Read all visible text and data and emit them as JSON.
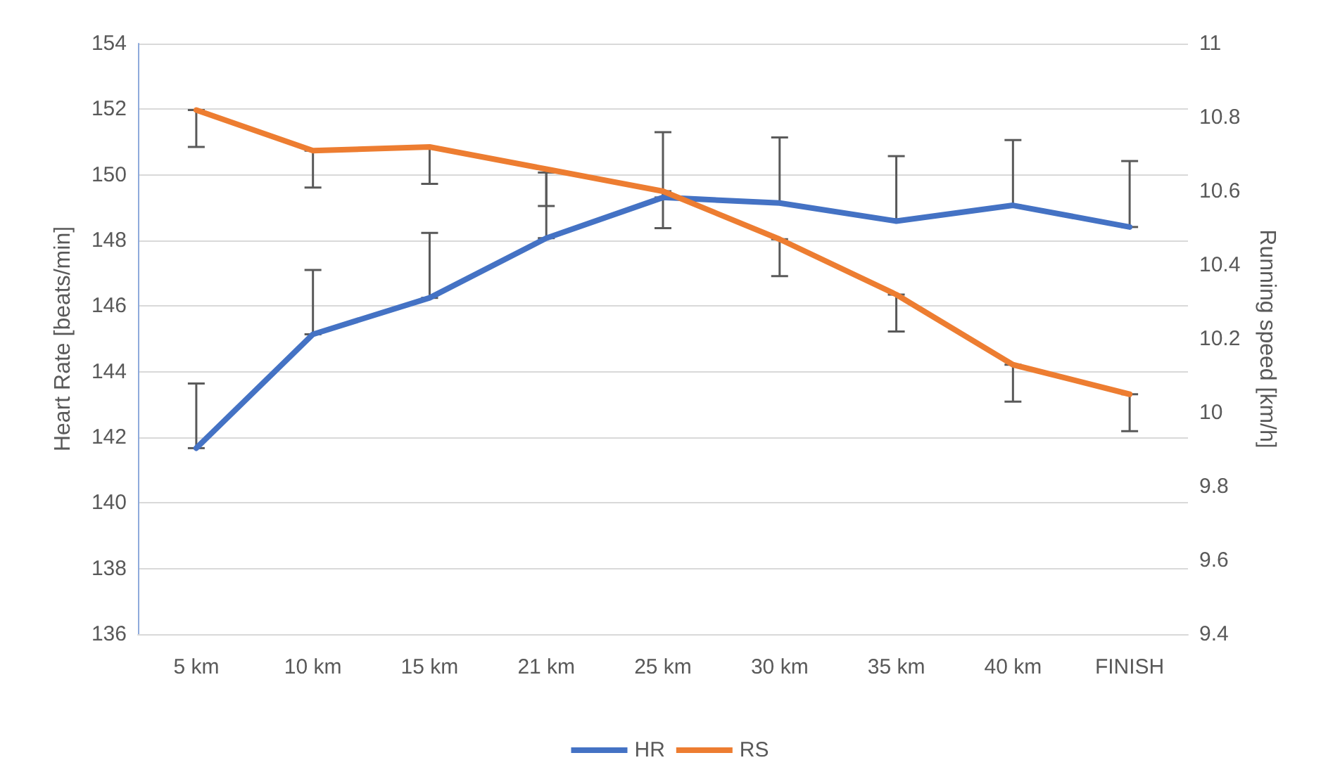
{
  "chart_data": {
    "type": "line",
    "ylabel": "Heart Rate [beats/min]",
    "y2label": "Running speed [km/h]",
    "categories": [
      "5 km",
      "10 km",
      "15 km",
      "21 km",
      "25 km",
      "30 km",
      "35 km",
      "40 km",
      "FINISH"
    ],
    "series": [
      {
        "name": "HR",
        "color": "#4472c4",
        "values": [
          141.67,
          145.14,
          146.25,
          148.07,
          149.31,
          149.14,
          148.59,
          149.07,
          148.41
        ],
        "errors": [
          [
            141.67,
            143.64
          ],
          [
            145.14,
            147.1
          ],
          [
            146.25,
            148.23
          ],
          [
            148.07,
            150.07
          ],
          [
            149.31,
            151.3
          ],
          [
            149.14,
            151.14
          ],
          [
            148.59,
            150.57
          ],
          [
            149.07,
            151.06
          ],
          [
            148.41,
            150.42
          ]
        ]
      },
      {
        "name": "RS",
        "color": "#ed7d31",
        "axis": "y2",
        "values": [
          10.82,
          10.71,
          10.72,
          10.66,
          10.6,
          10.47,
          10.32,
          10.13,
          10.05
        ],
        "errors": [
          [
            10.72,
            10.82
          ],
          [
            10.61,
            10.71
          ],
          [
            10.62,
            10.72
          ],
          [
            10.56,
            10.66
          ],
          [
            10.5,
            10.6
          ],
          [
            10.37,
            10.47
          ],
          [
            10.22,
            10.32
          ],
          [
            10.03,
            10.13
          ],
          [
            9.95,
            10.05
          ]
        ]
      }
    ],
    "ylim": [
      136,
      154
    ],
    "yticks": [
      136,
      138,
      140,
      142,
      144,
      146,
      148,
      150,
      152,
      154
    ],
    "y2lim": [
      9.4,
      11
    ],
    "y2ticks": [
      9.4,
      9.6,
      9.8,
      10,
      10.2,
      10.4,
      10.6,
      10.8,
      11
    ],
    "grid": "y",
    "legend": "bottom",
    "marker": "none",
    "line_style": "solid"
  }
}
